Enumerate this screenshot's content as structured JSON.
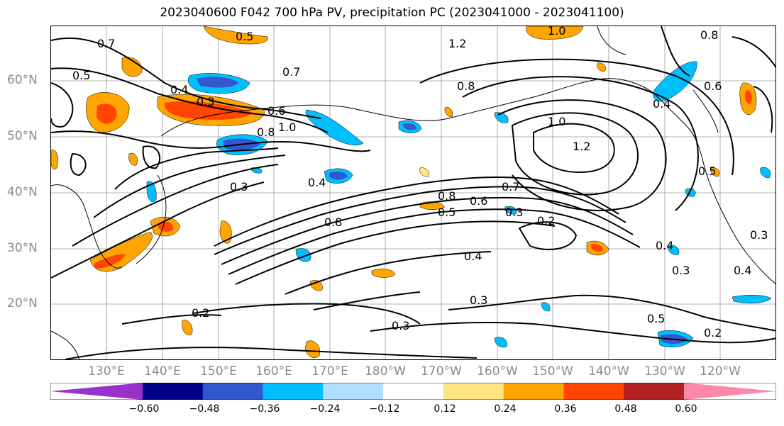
{
  "title": "2023040600 F042 700 hPa PV, precipitation PC (2023041000 - 2023041100)",
  "lat_labels": [
    "60°N",
    "50°N",
    "40°N",
    "30°N",
    "20°N"
  ],
  "lon_labels": [
    "130°E",
    "140°E",
    "150°E",
    "160°E",
    "170°E",
    "180°W",
    "170°W",
    "160°W",
    "150°W",
    "140°W",
    "130°W",
    "120°W"
  ],
  "contour_labels": [
    "0.5",
    "0.7",
    "0.5",
    "0.3",
    "0.4",
    "0.6",
    "1.0",
    "0.8",
    "0.3",
    "0.4",
    "0.8",
    "0.8",
    "0.5",
    "0.6",
    "0.7",
    "0.3",
    "0.2",
    "0.8",
    "1.0",
    "1.2",
    "0.6",
    "0.4",
    "0.5",
    "0.3",
    "0.4",
    "0.3",
    "0.4",
    "0.2",
    "0.3",
    "0.2",
    "0.5",
    "0.4",
    "1.0",
    "0.8",
    "1.2",
    "0.3",
    "0.7"
  ],
  "colorbar": {
    "ticks": [
      "−0.60",
      "−0.48",
      "−0.36",
      "−0.24",
      "−0.12",
      "0.12",
      "0.24",
      "0.36",
      "0.48",
      "0.60"
    ],
    "colors": [
      "#9932cc",
      "#00008b",
      "#3357cc",
      "#00bfff",
      "#b0e0ff",
      "#ffffff",
      "#ffe680",
      "#ffa500",
      "#ff4500",
      "#b22222",
      "#ff88aa"
    ]
  }
}
